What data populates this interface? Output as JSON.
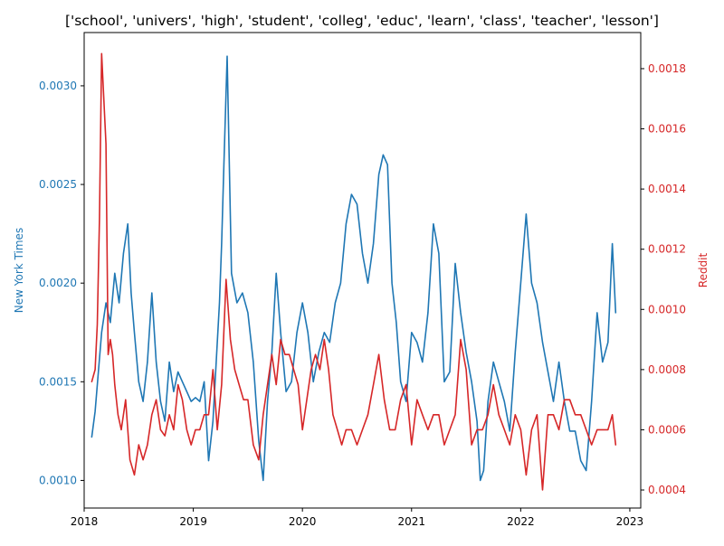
{
  "chart_data": {
    "type": "line",
    "title": "['school', 'univers', 'high', 'student', 'colleg', 'educ', 'learn', 'class', 'teacher', 'lesson']",
    "xlabel": "",
    "x_range": [
      2018.0,
      2023.1
    ],
    "x_ticks": [
      2018,
      2019,
      2020,
      2021,
      2022,
      2023
    ],
    "x_tick_labels": [
      "2018",
      "2019",
      "2020",
      "2021",
      "2022",
      "2023"
    ],
    "left_axis": {
      "label": "New York Times",
      "color": "#1f77b4",
      "ylim": [
        0.00086,
        0.00327
      ],
      "ticks": [
        0.001,
        0.0015,
        0.002,
        0.0025,
        0.003
      ],
      "tick_labels": [
        "0.0010",
        "0.0015",
        "0.0020",
        "0.0025",
        "0.0030"
      ]
    },
    "right_axis": {
      "label": "Reddit",
      "color": "#d62728",
      "ylim": [
        0.00034,
        0.00192
      ],
      "ticks": [
        0.0004,
        0.0006,
        0.0008,
        0.001,
        0.0012,
        0.0014,
        0.0016,
        0.0018
      ],
      "tick_labels": [
        "0.0004",
        "0.0006",
        "0.0008",
        "0.0010",
        "0.0012",
        "0.0014",
        "0.0016",
        "0.0018"
      ]
    },
    "grid": false,
    "series": [
      {
        "axis": "left",
        "color": "#1f77b4",
        "x": [
          2018.07,
          2018.1,
          2018.13,
          2018.16,
          2018.2,
          2018.24,
          2018.28,
          2018.32,
          2018.36,
          2018.4,
          2018.43,
          2018.46,
          2018.5,
          2018.54,
          2018.58,
          2018.62,
          2018.66,
          2018.7,
          2018.74,
          2018.78,
          2018.82,
          2018.86,
          2018.9,
          2018.94,
          2018.98,
          2019.02,
          2019.06,
          2019.1,
          2019.14,
          2019.18,
          2019.2,
          2019.22,
          2019.24,
          2019.26,
          2019.28,
          2019.31,
          2019.35,
          2019.4,
          2019.45,
          2019.5,
          2019.55,
          2019.6,
          2019.64,
          2019.68,
          2019.72,
          2019.76,
          2019.8,
          2019.85,
          2019.9,
          2019.95,
          2020.0,
          2020.05,
          2020.1,
          2020.15,
          2020.2,
          2020.25,
          2020.3,
          2020.35,
          2020.4,
          2020.45,
          2020.5,
          2020.55,
          2020.6,
          2020.65,
          2020.7,
          2020.74,
          2020.78,
          2020.82,
          2020.86,
          2020.9,
          2020.95,
          2021.0,
          2021.05,
          2021.1,
          2021.15,
          2021.2,
          2021.25,
          2021.3,
          2021.35,
          2021.4,
          2021.45,
          2021.5,
          2021.55,
          2021.6,
          2021.63,
          2021.66,
          2021.7,
          2021.75,
          2021.8,
          2021.85,
          2021.9,
          2021.95,
          2022.0,
          2022.05,
          2022.1,
          2022.15,
          2022.2,
          2022.25,
          2022.3,
          2022.35,
          2022.4,
          2022.45,
          2022.5,
          2022.55,
          2022.6,
          2022.65,
          2022.7,
          2022.75,
          2022.8,
          2022.84,
          2022.87
        ],
        "y": [
          0.00122,
          0.00135,
          0.00155,
          0.00175,
          0.0019,
          0.0018,
          0.00205,
          0.0019,
          0.00215,
          0.0023,
          0.00195,
          0.00175,
          0.0015,
          0.0014,
          0.0016,
          0.00195,
          0.0016,
          0.0014,
          0.0013,
          0.0016,
          0.00145,
          0.00155,
          0.0015,
          0.00145,
          0.0014,
          0.00142,
          0.0014,
          0.0015,
          0.0011,
          0.0013,
          0.0015,
          0.0017,
          0.0019,
          0.0022,
          0.0026,
          0.00315,
          0.00205,
          0.0019,
          0.00195,
          0.00185,
          0.0016,
          0.0012,
          0.001,
          0.0014,
          0.00165,
          0.00205,
          0.00175,
          0.00145,
          0.0015,
          0.00175,
          0.0019,
          0.00175,
          0.0015,
          0.00165,
          0.00175,
          0.0017,
          0.0019,
          0.002,
          0.0023,
          0.00245,
          0.0024,
          0.00215,
          0.002,
          0.0022,
          0.00255,
          0.00265,
          0.0026,
          0.002,
          0.0018,
          0.0015,
          0.0014,
          0.00175,
          0.0017,
          0.0016,
          0.00185,
          0.0023,
          0.00215,
          0.0015,
          0.00155,
          0.0021,
          0.00185,
          0.00165,
          0.0015,
          0.0013,
          0.001,
          0.00105,
          0.0014,
          0.0016,
          0.0015,
          0.0014,
          0.00125,
          0.00165,
          0.002,
          0.00235,
          0.002,
          0.0019,
          0.0017,
          0.00155,
          0.0014,
          0.0016,
          0.0014,
          0.00125,
          0.00125,
          0.0011,
          0.00105,
          0.0014,
          0.00185,
          0.0016,
          0.0017,
          0.0022,
          0.00185
        ]
      },
      {
        "axis": "right",
        "color": "#d62728",
        "x": [
          2018.07,
          2018.1,
          2018.12,
          2018.14,
          2018.16,
          2018.18,
          2018.2,
          2018.22,
          2018.24,
          2018.26,
          2018.28,
          2018.31,
          2018.34,
          2018.38,
          2018.42,
          2018.46,
          2018.5,
          2018.54,
          2018.58,
          2018.62,
          2018.66,
          2018.7,
          2018.74,
          2018.78,
          2018.82,
          2018.86,
          2018.9,
          2018.94,
          2018.98,
          2019.02,
          2019.06,
          2019.1,
          2019.14,
          2019.18,
          2019.22,
          2019.26,
          2019.3,
          2019.34,
          2019.38,
          2019.42,
          2019.46,
          2019.5,
          2019.55,
          2019.6,
          2019.64,
          2019.68,
          2019.72,
          2019.76,
          2019.8,
          2019.84,
          2019.88,
          2019.92,
          2019.96,
          2020.0,
          2020.04,
          2020.08,
          2020.12,
          2020.16,
          2020.2,
          2020.24,
          2020.28,
          2020.32,
          2020.36,
          2020.4,
          2020.45,
          2020.5,
          2020.55,
          2020.6,
          2020.65,
          2020.7,
          2020.75,
          2020.8,
          2020.85,
          2020.9,
          2020.95,
          2021.0,
          2021.05,
          2021.1,
          2021.15,
          2021.2,
          2021.25,
          2021.3,
          2021.35,
          2021.4,
          2021.45,
          2021.5,
          2021.55,
          2021.6,
          2021.65,
          2021.7,
          2021.75,
          2021.8,
          2021.85,
          2021.9,
          2021.95,
          2022.0,
          2022.05,
          2022.1,
          2022.15,
          2022.2,
          2022.25,
          2022.3,
          2022.35,
          2022.4,
          2022.45,
          2022.5,
          2022.55,
          2022.6,
          2022.65,
          2022.7,
          2022.75,
          2022.8,
          2022.84,
          2022.87
        ],
        "y": [
          0.00076,
          0.0008,
          0.00095,
          0.0013,
          0.00185,
          0.0017,
          0.00155,
          0.00085,
          0.0009,
          0.00085,
          0.00075,
          0.00065,
          0.0006,
          0.0007,
          0.0005,
          0.00045,
          0.00055,
          0.0005,
          0.00055,
          0.00065,
          0.0007,
          0.0006,
          0.00058,
          0.00065,
          0.0006,
          0.00075,
          0.0007,
          0.0006,
          0.00055,
          0.0006,
          0.0006,
          0.00065,
          0.00065,
          0.0008,
          0.0006,
          0.00075,
          0.0011,
          0.0009,
          0.0008,
          0.00075,
          0.0007,
          0.0007,
          0.00055,
          0.0005,
          0.00065,
          0.00075,
          0.00085,
          0.00075,
          0.0009,
          0.00085,
          0.00085,
          0.0008,
          0.00075,
          0.0006,
          0.0007,
          0.0008,
          0.00085,
          0.0008,
          0.0009,
          0.0008,
          0.00065,
          0.0006,
          0.00055,
          0.0006,
          0.0006,
          0.00055,
          0.0006,
          0.00065,
          0.00075,
          0.00085,
          0.0007,
          0.0006,
          0.0006,
          0.0007,
          0.00075,
          0.00055,
          0.0007,
          0.00065,
          0.0006,
          0.00065,
          0.00065,
          0.00055,
          0.0006,
          0.00065,
          0.0009,
          0.0008,
          0.00055,
          0.0006,
          0.0006,
          0.00065,
          0.00075,
          0.00065,
          0.0006,
          0.00055,
          0.00065,
          0.0006,
          0.00045,
          0.0006,
          0.00065,
          0.0004,
          0.00065,
          0.00065,
          0.0006,
          0.0007,
          0.0007,
          0.00065,
          0.00065,
          0.0006,
          0.00055,
          0.0006,
          0.0006,
          0.0006,
          0.00065,
          0.00055
        ]
      }
    ]
  }
}
